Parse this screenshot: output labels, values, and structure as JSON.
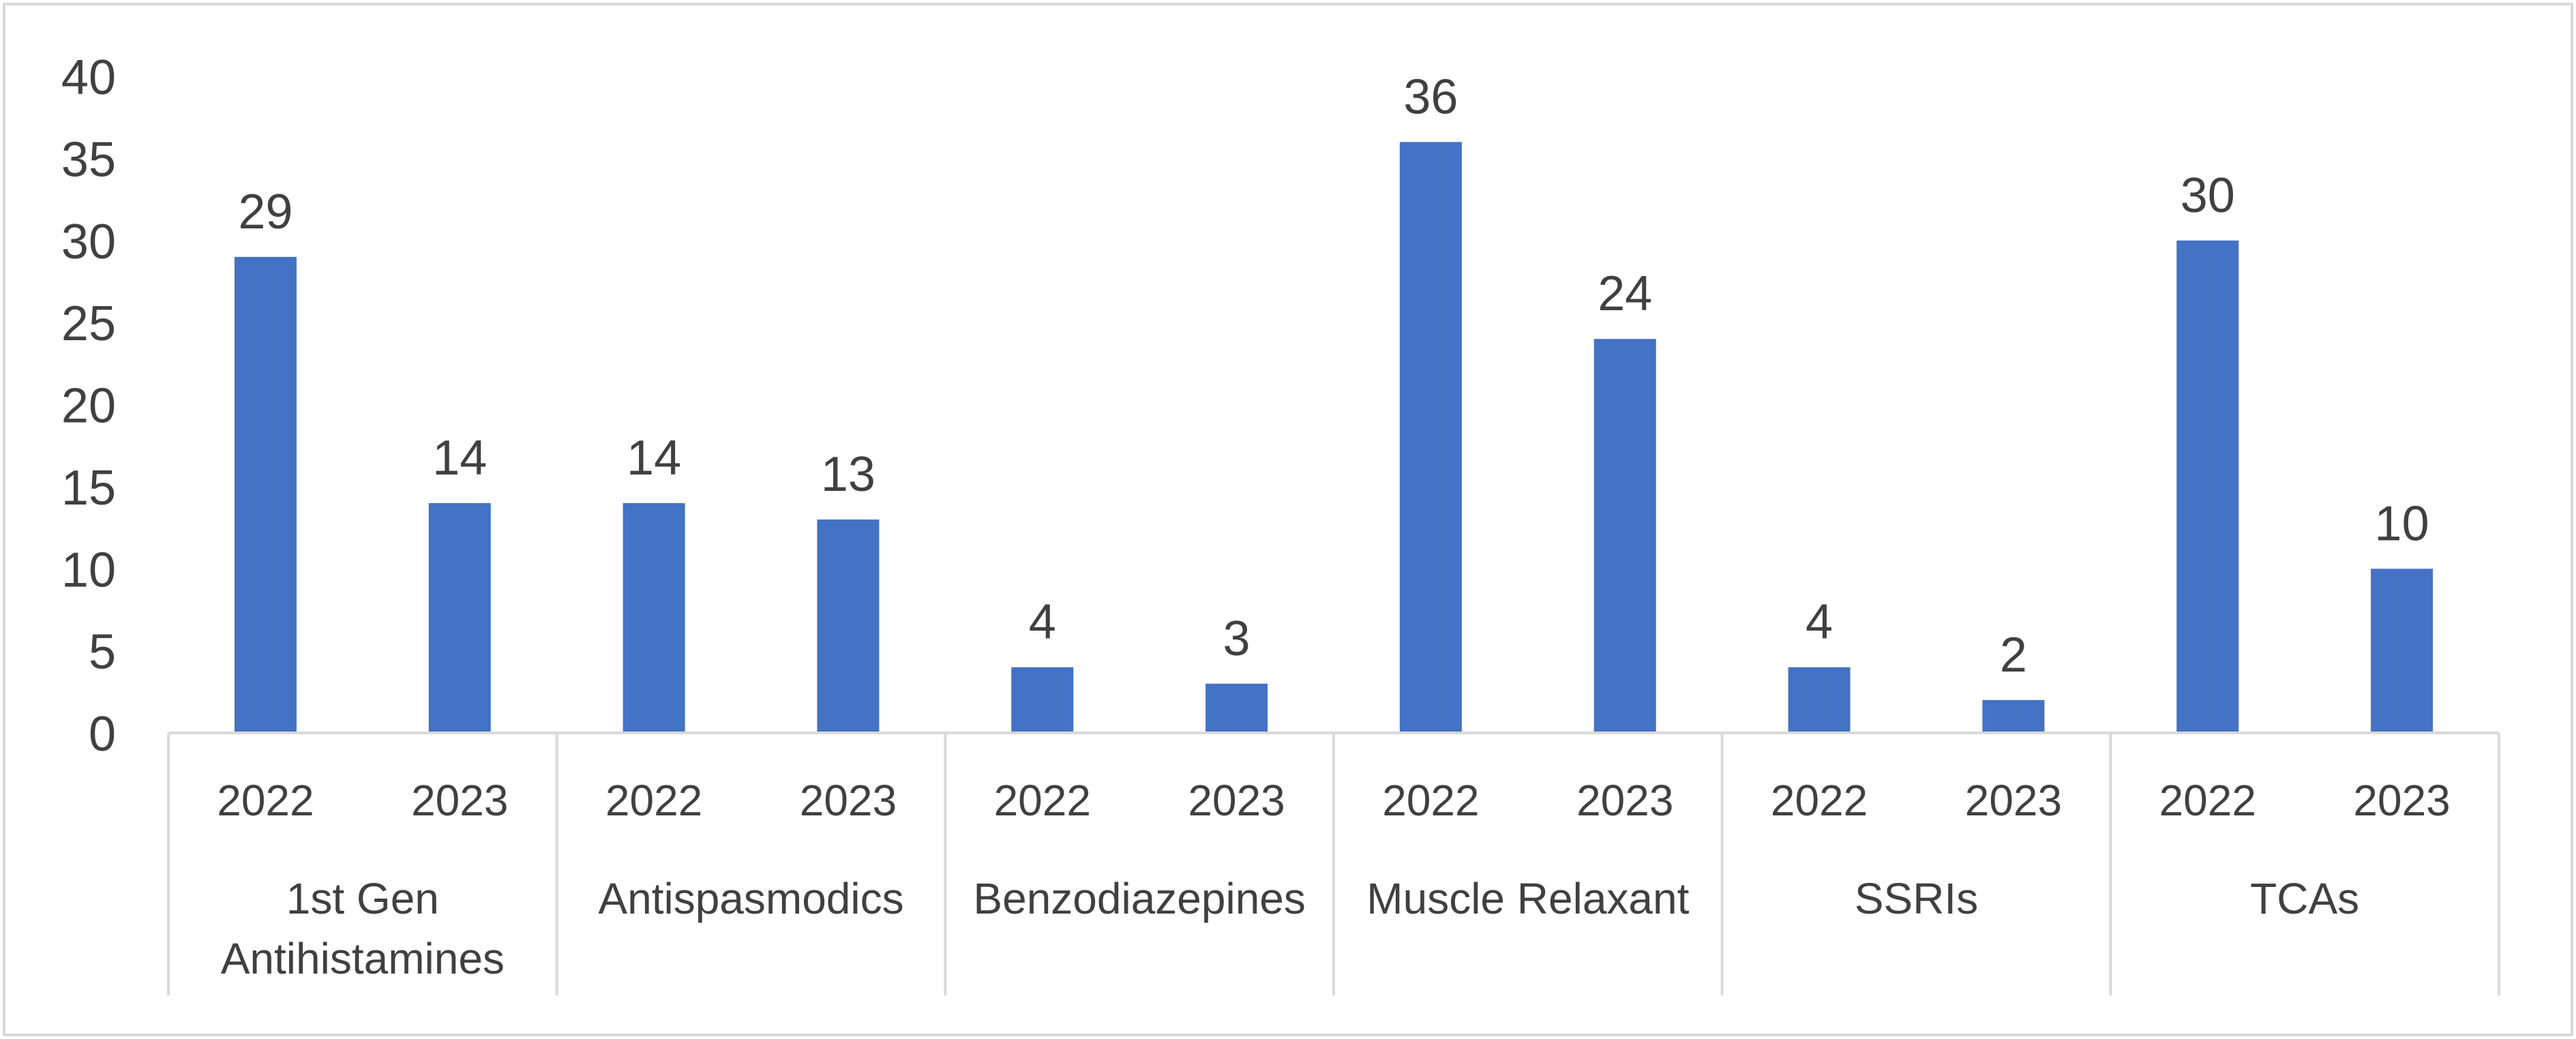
{
  "chart_data": {
    "type": "bar",
    "title": "",
    "xlabel": "",
    "ylabel": "",
    "ylim": [
      0,
      40
    ],
    "yticks": [
      "0",
      "5",
      "10",
      "15",
      "20",
      "25",
      "30",
      "35",
      "40"
    ],
    "grid": false,
    "legend": "none",
    "bar_color": "#4472C4",
    "groups": [
      {
        "name": "1st Gen Antihistamines",
        "name_lines": [
          "1st Gen",
          "Antihistamines"
        ],
        "categories": [
          "2022",
          "2023"
        ],
        "values": [
          29,
          14
        ]
      },
      {
        "name": "Antispasmodics",
        "name_lines": [
          "Antispasmodics"
        ],
        "categories": [
          "2022",
          "2023"
        ],
        "values": [
          14,
          13
        ]
      },
      {
        "name": "Benzodiazepines",
        "name_lines": [
          "Benzodiazepines"
        ],
        "categories": [
          "2022",
          "2023"
        ],
        "values": [
          4,
          3
        ]
      },
      {
        "name": "Muscle Relaxant",
        "name_lines": [
          "Muscle Relaxant"
        ],
        "categories": [
          "2022",
          "2023"
        ],
        "values": [
          36,
          24
        ]
      },
      {
        "name": "SSRIs",
        "name_lines": [
          "SSRIs"
        ],
        "categories": [
          "2022",
          "2023"
        ],
        "values": [
          4,
          2
        ]
      },
      {
        "name": "TCAs",
        "name_lines": [
          "TCAs"
        ],
        "categories": [
          "2022",
          "2023"
        ],
        "values": [
          30,
          10
        ]
      }
    ]
  }
}
